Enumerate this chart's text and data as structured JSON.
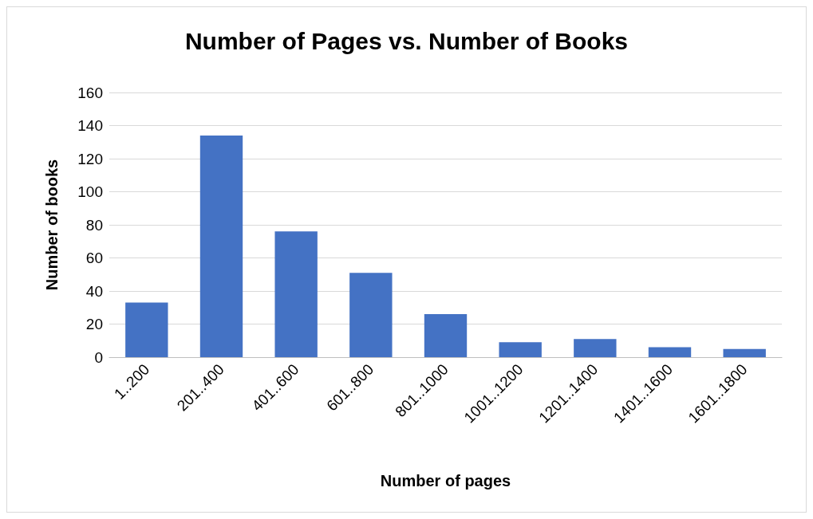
{
  "chart_data": {
    "type": "bar",
    "title": "Number of Pages vs. Number of Books",
    "xlabel": "Number of pages",
    "ylabel": "Number of books",
    "categories": [
      "1..200",
      "201..400",
      "401..600",
      "601..800",
      "801..1000",
      "1001..1200",
      "1201..1400",
      "1401..1600",
      "1601..1800"
    ],
    "values": [
      33,
      134,
      76,
      51,
      26,
      9,
      11,
      6,
      5
    ],
    "color": "#4472c4",
    "ylim": [
      0,
      160
    ],
    "yticks": [
      0,
      20,
      40,
      60,
      80,
      100,
      120,
      140,
      160
    ],
    "grid": "y"
  }
}
